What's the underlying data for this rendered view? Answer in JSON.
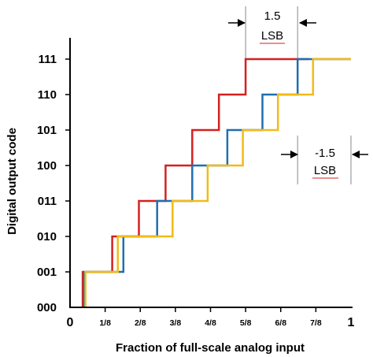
{
  "chart_data": {
    "type": "line",
    "xlabel": "Fraction of full-scale analog input",
    "ylabel": "Digital output code",
    "xlim": [
      0,
      1
    ],
    "ylim": [
      0,
      7
    ],
    "x_ticks": [
      {
        "value": 0,
        "label": "0",
        "size": "large"
      },
      {
        "value": 0.125,
        "label": "1/8",
        "size": "small"
      },
      {
        "value": 0.25,
        "label": "2/8",
        "size": "small"
      },
      {
        "value": 0.375,
        "label": "3/8",
        "size": "small"
      },
      {
        "value": 0.5,
        "label": "4/8",
        "size": "small"
      },
      {
        "value": 0.625,
        "label": "5/8",
        "size": "small"
      },
      {
        "value": 0.75,
        "label": "6/8",
        "size": "small"
      },
      {
        "value": 0.875,
        "label": "7/8",
        "size": "small"
      },
      {
        "value": 1,
        "label": "1",
        "size": "large"
      }
    ],
    "y_ticks": [
      "000",
      "001",
      "010",
      "011",
      "100",
      "101",
      "110",
      "111"
    ],
    "grid": false,
    "series": [
      {
        "color": "#d62020",
        "x": [
          0.045,
          0.045,
          0.06,
          0.06,
          0.15,
          0.15,
          0.245,
          0.245,
          0.34,
          0.34,
          0.435,
          0.435,
          0.53,
          0.53,
          0.625,
          0.625,
          0.85
        ],
        "y": [
          0,
          1,
          1,
          1,
          1,
          2,
          2,
          3,
          3,
          4,
          4,
          5,
          5,
          6,
          6,
          7,
          7
        ]
      },
      {
        "color": "#1f6fb0",
        "x": [
          0.05,
          0.05,
          0.13,
          0.13,
          0.19,
          0.19,
          0.31,
          0.31,
          0.435,
          0.435,
          0.56,
          0.56,
          0.685,
          0.685,
          0.81,
          0.81,
          1.0
        ],
        "y": [
          0,
          1,
          1,
          1,
          1,
          2,
          2,
          3,
          3,
          4,
          4,
          5,
          5,
          6,
          6,
          7,
          7
        ]
      },
      {
        "color": "#f2bb15",
        "x": [
          0.055,
          0.055,
          0.17,
          0.17,
          0.365,
          0.365,
          0.49,
          0.49,
          0.615,
          0.615,
          0.74,
          0.74,
          0.865,
          0.865,
          1.0,
          1.0
        ],
        "y": [
          0,
          1,
          1,
          2,
          2,
          3,
          3,
          4,
          4,
          5,
          5,
          6,
          6,
          7,
          7,
          7
        ]
      }
    ],
    "annotations": [
      {
        "text_lines": [
          "1.5",
          "LSB"
        ],
        "position": "top",
        "between_x": [
          0.625,
          0.81
        ]
      },
      {
        "text_lines": [
          "-1.5",
          "LSB"
        ],
        "position": "right",
        "between_x": [
          0.81,
          1.0
        ]
      }
    ]
  }
}
